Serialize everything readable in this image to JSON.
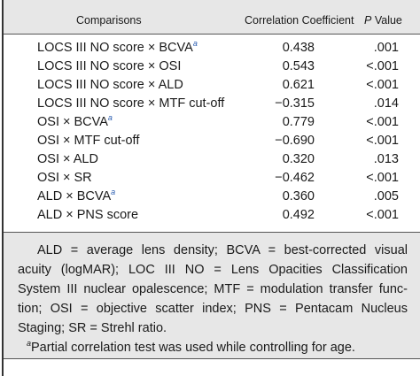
{
  "header": [
    "Comparisons",
    "Correlation Coefficient",
    {
      "italic": "P",
      "text": "Value"
    }
  ],
  "rows": [
    {
      "comparison": "LOCS III NO score × BCVA",
      "note": "a",
      "coefficient": "0.438",
      "p": ".001"
    },
    {
      "comparison": "LOCS III NO score × OSI",
      "coefficient": "0.543",
      "p": "<.001"
    },
    {
      "comparison": "LOCS III NO score × ALD",
      "coefficient": "0.621",
      "p": "<.001"
    },
    {
      "comparison": "LOCS III NO score × MTF cut-off",
      "coefficient": "−0.315",
      "p": ".014"
    },
    {
      "comparison": "OSI × BCVA",
      "note": "a",
      "coefficient": "0.779",
      "p": "<.001"
    },
    {
      "comparison": "OSI × MTF cut-off",
      "coefficient": "−0.690",
      "p": "<.001"
    },
    {
      "comparison": "OSI × ALD",
      "coefficient": "0.320",
      "p": ".013"
    },
    {
      "comparison": "OSI × SR",
      "coefficient": "−0.462",
      "p": "<.001"
    },
    {
      "comparison": "ALD × BCVA",
      "note": "a",
      "coefficient": "0.360",
      "p": ".005"
    },
    {
      "comparison": "ALD × PNS score",
      "coefficient": "0.492",
      "p": "<.001"
    }
  ],
  "footnote": {
    "lines": [
      "ALD = average lens density; BCVA = best-corrected visual",
      "acuity (logMAR); LOC III NO = Lens Opacities Classification",
      "System III nuclear opalescence; MTF = modulation transfer func-",
      "tion; OSI = objective scatter index; PNS = Pentacam Nucleus",
      "Staging; SR = Strehl ratio."
    ],
    "note_mark": "a",
    "note": "Partial correlation test was used while controlling for age."
  }
}
